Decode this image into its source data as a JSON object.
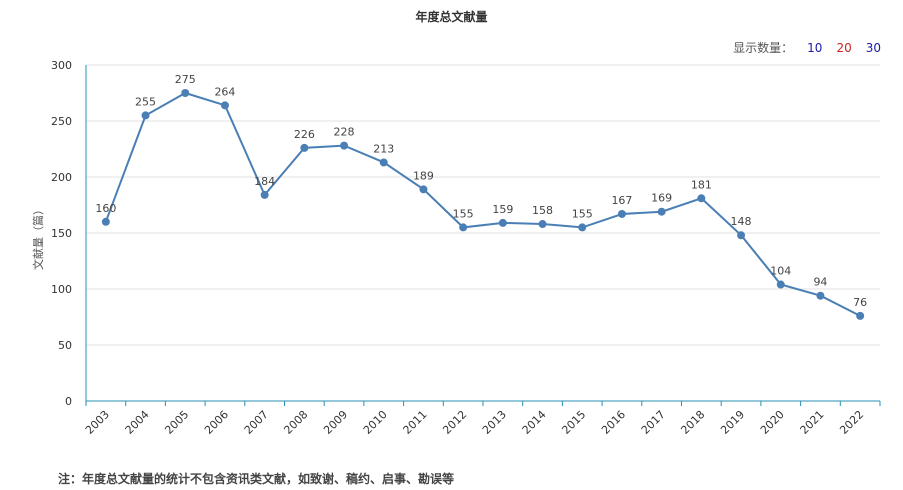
{
  "chart_data": {
    "type": "line",
    "title": "年度总文献量",
    "ylabel": "文献量（篇）",
    "xlabel": "",
    "ylim": [
      0,
      300
    ],
    "yticks": [
      0,
      50,
      100,
      150,
      200,
      250,
      300
    ],
    "grid": true,
    "categories": [
      "2003",
      "2004",
      "2005",
      "2006",
      "2007",
      "2008",
      "2009",
      "2010",
      "2011",
      "2012",
      "2013",
      "2014",
      "2015",
      "2016",
      "2017",
      "2018",
      "2019",
      "2020",
      "2021",
      "2022"
    ],
    "series": [
      {
        "values": [
          160,
          255,
          275,
          264,
          184,
          226,
          228,
          213,
          189,
          155,
          159,
          158,
          155,
          167,
          169,
          181,
          148,
          104,
          94,
          76
        ],
        "color": "#4a7fb5"
      }
    ]
  },
  "controls": {
    "count_label": "显示数量：",
    "options": [
      {
        "label": "10",
        "color": "#1a1aa6"
      },
      {
        "label": "20",
        "color": "#cc2222"
      },
      {
        "label": "30",
        "color": "#1a1aa6"
      }
    ]
  },
  "note": "注：年度总文献量的统计不包含资讯类文献，如致谢、稿约、启事、勘误等"
}
